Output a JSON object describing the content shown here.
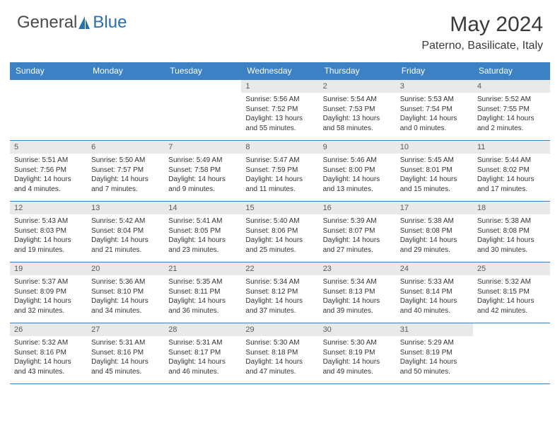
{
  "brand": {
    "general": "General",
    "blue": "Blue"
  },
  "title": "May 2024",
  "location": "Paterno, Basilicate, Italy",
  "colors": {
    "header_bg": "#3b81c3",
    "header_text": "#ffffff",
    "daynum_bg": "#e9e9e9",
    "rule": "#3b81c3",
    "logo_blue": "#2a6fb0"
  },
  "day_headers": [
    "Sunday",
    "Monday",
    "Tuesday",
    "Wednesday",
    "Thursday",
    "Friday",
    "Saturday"
  ],
  "weeks": [
    [
      {
        "n": "",
        "sr": "",
        "ss": "",
        "dl": ""
      },
      {
        "n": "",
        "sr": "",
        "ss": "",
        "dl": ""
      },
      {
        "n": "",
        "sr": "",
        "ss": "",
        "dl": ""
      },
      {
        "n": "1",
        "sr": "Sunrise: 5:56 AM",
        "ss": "Sunset: 7:52 PM",
        "dl": "Daylight: 13 hours and 55 minutes."
      },
      {
        "n": "2",
        "sr": "Sunrise: 5:54 AM",
        "ss": "Sunset: 7:53 PM",
        "dl": "Daylight: 13 hours and 58 minutes."
      },
      {
        "n": "3",
        "sr": "Sunrise: 5:53 AM",
        "ss": "Sunset: 7:54 PM",
        "dl": "Daylight: 14 hours and 0 minutes."
      },
      {
        "n": "4",
        "sr": "Sunrise: 5:52 AM",
        "ss": "Sunset: 7:55 PM",
        "dl": "Daylight: 14 hours and 2 minutes."
      }
    ],
    [
      {
        "n": "5",
        "sr": "Sunrise: 5:51 AM",
        "ss": "Sunset: 7:56 PM",
        "dl": "Daylight: 14 hours and 4 minutes."
      },
      {
        "n": "6",
        "sr": "Sunrise: 5:50 AM",
        "ss": "Sunset: 7:57 PM",
        "dl": "Daylight: 14 hours and 7 minutes."
      },
      {
        "n": "7",
        "sr": "Sunrise: 5:49 AM",
        "ss": "Sunset: 7:58 PM",
        "dl": "Daylight: 14 hours and 9 minutes."
      },
      {
        "n": "8",
        "sr": "Sunrise: 5:47 AM",
        "ss": "Sunset: 7:59 PM",
        "dl": "Daylight: 14 hours and 11 minutes."
      },
      {
        "n": "9",
        "sr": "Sunrise: 5:46 AM",
        "ss": "Sunset: 8:00 PM",
        "dl": "Daylight: 14 hours and 13 minutes."
      },
      {
        "n": "10",
        "sr": "Sunrise: 5:45 AM",
        "ss": "Sunset: 8:01 PM",
        "dl": "Daylight: 14 hours and 15 minutes."
      },
      {
        "n": "11",
        "sr": "Sunrise: 5:44 AM",
        "ss": "Sunset: 8:02 PM",
        "dl": "Daylight: 14 hours and 17 minutes."
      }
    ],
    [
      {
        "n": "12",
        "sr": "Sunrise: 5:43 AM",
        "ss": "Sunset: 8:03 PM",
        "dl": "Daylight: 14 hours and 19 minutes."
      },
      {
        "n": "13",
        "sr": "Sunrise: 5:42 AM",
        "ss": "Sunset: 8:04 PM",
        "dl": "Daylight: 14 hours and 21 minutes."
      },
      {
        "n": "14",
        "sr": "Sunrise: 5:41 AM",
        "ss": "Sunset: 8:05 PM",
        "dl": "Daylight: 14 hours and 23 minutes."
      },
      {
        "n": "15",
        "sr": "Sunrise: 5:40 AM",
        "ss": "Sunset: 8:06 PM",
        "dl": "Daylight: 14 hours and 25 minutes."
      },
      {
        "n": "16",
        "sr": "Sunrise: 5:39 AM",
        "ss": "Sunset: 8:07 PM",
        "dl": "Daylight: 14 hours and 27 minutes."
      },
      {
        "n": "17",
        "sr": "Sunrise: 5:38 AM",
        "ss": "Sunset: 8:08 PM",
        "dl": "Daylight: 14 hours and 29 minutes."
      },
      {
        "n": "18",
        "sr": "Sunrise: 5:38 AM",
        "ss": "Sunset: 8:08 PM",
        "dl": "Daylight: 14 hours and 30 minutes."
      }
    ],
    [
      {
        "n": "19",
        "sr": "Sunrise: 5:37 AM",
        "ss": "Sunset: 8:09 PM",
        "dl": "Daylight: 14 hours and 32 minutes."
      },
      {
        "n": "20",
        "sr": "Sunrise: 5:36 AM",
        "ss": "Sunset: 8:10 PM",
        "dl": "Daylight: 14 hours and 34 minutes."
      },
      {
        "n": "21",
        "sr": "Sunrise: 5:35 AM",
        "ss": "Sunset: 8:11 PM",
        "dl": "Daylight: 14 hours and 36 minutes."
      },
      {
        "n": "22",
        "sr": "Sunrise: 5:34 AM",
        "ss": "Sunset: 8:12 PM",
        "dl": "Daylight: 14 hours and 37 minutes."
      },
      {
        "n": "23",
        "sr": "Sunrise: 5:34 AM",
        "ss": "Sunset: 8:13 PM",
        "dl": "Daylight: 14 hours and 39 minutes."
      },
      {
        "n": "24",
        "sr": "Sunrise: 5:33 AM",
        "ss": "Sunset: 8:14 PM",
        "dl": "Daylight: 14 hours and 40 minutes."
      },
      {
        "n": "25",
        "sr": "Sunrise: 5:32 AM",
        "ss": "Sunset: 8:15 PM",
        "dl": "Daylight: 14 hours and 42 minutes."
      }
    ],
    [
      {
        "n": "26",
        "sr": "Sunrise: 5:32 AM",
        "ss": "Sunset: 8:16 PM",
        "dl": "Daylight: 14 hours and 43 minutes."
      },
      {
        "n": "27",
        "sr": "Sunrise: 5:31 AM",
        "ss": "Sunset: 8:16 PM",
        "dl": "Daylight: 14 hours and 45 minutes."
      },
      {
        "n": "28",
        "sr": "Sunrise: 5:31 AM",
        "ss": "Sunset: 8:17 PM",
        "dl": "Daylight: 14 hours and 46 minutes."
      },
      {
        "n": "29",
        "sr": "Sunrise: 5:30 AM",
        "ss": "Sunset: 8:18 PM",
        "dl": "Daylight: 14 hours and 47 minutes."
      },
      {
        "n": "30",
        "sr": "Sunrise: 5:30 AM",
        "ss": "Sunset: 8:19 PM",
        "dl": "Daylight: 14 hours and 49 minutes."
      },
      {
        "n": "31",
        "sr": "Sunrise: 5:29 AM",
        "ss": "Sunset: 8:19 PM",
        "dl": "Daylight: 14 hours and 50 minutes."
      },
      {
        "n": "",
        "sr": "",
        "ss": "",
        "dl": ""
      }
    ]
  ]
}
